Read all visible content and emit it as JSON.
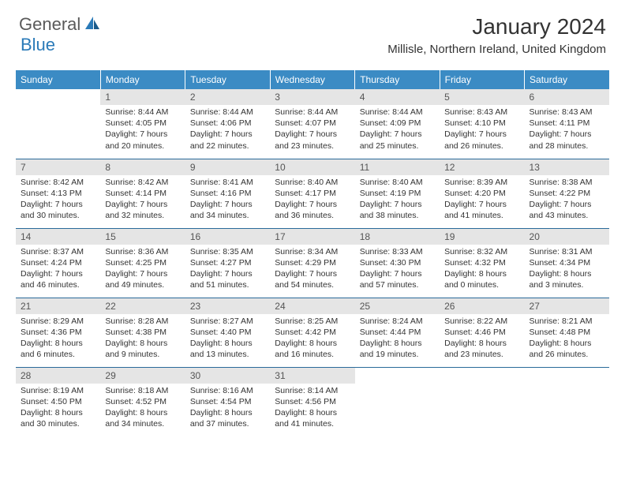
{
  "logo": {
    "text1": "General",
    "text2": "Blue"
  },
  "title": "January 2024",
  "location": "Millisle, Northern Ireland, United Kingdom",
  "colors": {
    "header_bg": "#3b8bc4",
    "header_text": "#ffffff",
    "daynum_bg": "#e5e5e5",
    "rule": "#2a6a9a",
    "logo_gray": "#5a5a5a",
    "logo_blue": "#2a7ab8"
  },
  "weekdays": [
    "Sunday",
    "Monday",
    "Tuesday",
    "Wednesday",
    "Thursday",
    "Friday",
    "Saturday"
  ],
  "weeks": [
    [
      {
        "empty": true
      },
      {
        "n": "1",
        "sr": "Sunrise: 8:44 AM",
        "ss": "Sunset: 4:05 PM",
        "d1": "Daylight: 7 hours",
        "d2": "and 20 minutes."
      },
      {
        "n": "2",
        "sr": "Sunrise: 8:44 AM",
        "ss": "Sunset: 4:06 PM",
        "d1": "Daylight: 7 hours",
        "d2": "and 22 minutes."
      },
      {
        "n": "3",
        "sr": "Sunrise: 8:44 AM",
        "ss": "Sunset: 4:07 PM",
        "d1": "Daylight: 7 hours",
        "d2": "and 23 minutes."
      },
      {
        "n": "4",
        "sr": "Sunrise: 8:44 AM",
        "ss": "Sunset: 4:09 PM",
        "d1": "Daylight: 7 hours",
        "d2": "and 25 minutes."
      },
      {
        "n": "5",
        "sr": "Sunrise: 8:43 AM",
        "ss": "Sunset: 4:10 PM",
        "d1": "Daylight: 7 hours",
        "d2": "and 26 minutes."
      },
      {
        "n": "6",
        "sr": "Sunrise: 8:43 AM",
        "ss": "Sunset: 4:11 PM",
        "d1": "Daylight: 7 hours",
        "d2": "and 28 minutes."
      }
    ],
    [
      {
        "n": "7",
        "sr": "Sunrise: 8:42 AM",
        "ss": "Sunset: 4:13 PM",
        "d1": "Daylight: 7 hours",
        "d2": "and 30 minutes."
      },
      {
        "n": "8",
        "sr": "Sunrise: 8:42 AM",
        "ss": "Sunset: 4:14 PM",
        "d1": "Daylight: 7 hours",
        "d2": "and 32 minutes."
      },
      {
        "n": "9",
        "sr": "Sunrise: 8:41 AM",
        "ss": "Sunset: 4:16 PM",
        "d1": "Daylight: 7 hours",
        "d2": "and 34 minutes."
      },
      {
        "n": "10",
        "sr": "Sunrise: 8:40 AM",
        "ss": "Sunset: 4:17 PM",
        "d1": "Daylight: 7 hours",
        "d2": "and 36 minutes."
      },
      {
        "n": "11",
        "sr": "Sunrise: 8:40 AM",
        "ss": "Sunset: 4:19 PM",
        "d1": "Daylight: 7 hours",
        "d2": "and 38 minutes."
      },
      {
        "n": "12",
        "sr": "Sunrise: 8:39 AM",
        "ss": "Sunset: 4:20 PM",
        "d1": "Daylight: 7 hours",
        "d2": "and 41 minutes."
      },
      {
        "n": "13",
        "sr": "Sunrise: 8:38 AM",
        "ss": "Sunset: 4:22 PM",
        "d1": "Daylight: 7 hours",
        "d2": "and 43 minutes."
      }
    ],
    [
      {
        "n": "14",
        "sr": "Sunrise: 8:37 AM",
        "ss": "Sunset: 4:24 PM",
        "d1": "Daylight: 7 hours",
        "d2": "and 46 minutes."
      },
      {
        "n": "15",
        "sr": "Sunrise: 8:36 AM",
        "ss": "Sunset: 4:25 PM",
        "d1": "Daylight: 7 hours",
        "d2": "and 49 minutes."
      },
      {
        "n": "16",
        "sr": "Sunrise: 8:35 AM",
        "ss": "Sunset: 4:27 PM",
        "d1": "Daylight: 7 hours",
        "d2": "and 51 minutes."
      },
      {
        "n": "17",
        "sr": "Sunrise: 8:34 AM",
        "ss": "Sunset: 4:29 PM",
        "d1": "Daylight: 7 hours",
        "d2": "and 54 minutes."
      },
      {
        "n": "18",
        "sr": "Sunrise: 8:33 AM",
        "ss": "Sunset: 4:30 PM",
        "d1": "Daylight: 7 hours",
        "d2": "and 57 minutes."
      },
      {
        "n": "19",
        "sr": "Sunrise: 8:32 AM",
        "ss": "Sunset: 4:32 PM",
        "d1": "Daylight: 8 hours",
        "d2": "and 0 minutes."
      },
      {
        "n": "20",
        "sr": "Sunrise: 8:31 AM",
        "ss": "Sunset: 4:34 PM",
        "d1": "Daylight: 8 hours",
        "d2": "and 3 minutes."
      }
    ],
    [
      {
        "n": "21",
        "sr": "Sunrise: 8:29 AM",
        "ss": "Sunset: 4:36 PM",
        "d1": "Daylight: 8 hours",
        "d2": "and 6 minutes."
      },
      {
        "n": "22",
        "sr": "Sunrise: 8:28 AM",
        "ss": "Sunset: 4:38 PM",
        "d1": "Daylight: 8 hours",
        "d2": "and 9 minutes."
      },
      {
        "n": "23",
        "sr": "Sunrise: 8:27 AM",
        "ss": "Sunset: 4:40 PM",
        "d1": "Daylight: 8 hours",
        "d2": "and 13 minutes."
      },
      {
        "n": "24",
        "sr": "Sunrise: 8:25 AM",
        "ss": "Sunset: 4:42 PM",
        "d1": "Daylight: 8 hours",
        "d2": "and 16 minutes."
      },
      {
        "n": "25",
        "sr": "Sunrise: 8:24 AM",
        "ss": "Sunset: 4:44 PM",
        "d1": "Daylight: 8 hours",
        "d2": "and 19 minutes."
      },
      {
        "n": "26",
        "sr": "Sunrise: 8:22 AM",
        "ss": "Sunset: 4:46 PM",
        "d1": "Daylight: 8 hours",
        "d2": "and 23 minutes."
      },
      {
        "n": "27",
        "sr": "Sunrise: 8:21 AM",
        "ss": "Sunset: 4:48 PM",
        "d1": "Daylight: 8 hours",
        "d2": "and 26 minutes."
      }
    ],
    [
      {
        "n": "28",
        "sr": "Sunrise: 8:19 AM",
        "ss": "Sunset: 4:50 PM",
        "d1": "Daylight: 8 hours",
        "d2": "and 30 minutes."
      },
      {
        "n": "29",
        "sr": "Sunrise: 8:18 AM",
        "ss": "Sunset: 4:52 PM",
        "d1": "Daylight: 8 hours",
        "d2": "and 34 minutes."
      },
      {
        "n": "30",
        "sr": "Sunrise: 8:16 AM",
        "ss": "Sunset: 4:54 PM",
        "d1": "Daylight: 8 hours",
        "d2": "and 37 minutes."
      },
      {
        "n": "31",
        "sr": "Sunrise: 8:14 AM",
        "ss": "Sunset: 4:56 PM",
        "d1": "Daylight: 8 hours",
        "d2": "and 41 minutes."
      },
      {
        "empty": true
      },
      {
        "empty": true
      },
      {
        "empty": true
      }
    ]
  ]
}
